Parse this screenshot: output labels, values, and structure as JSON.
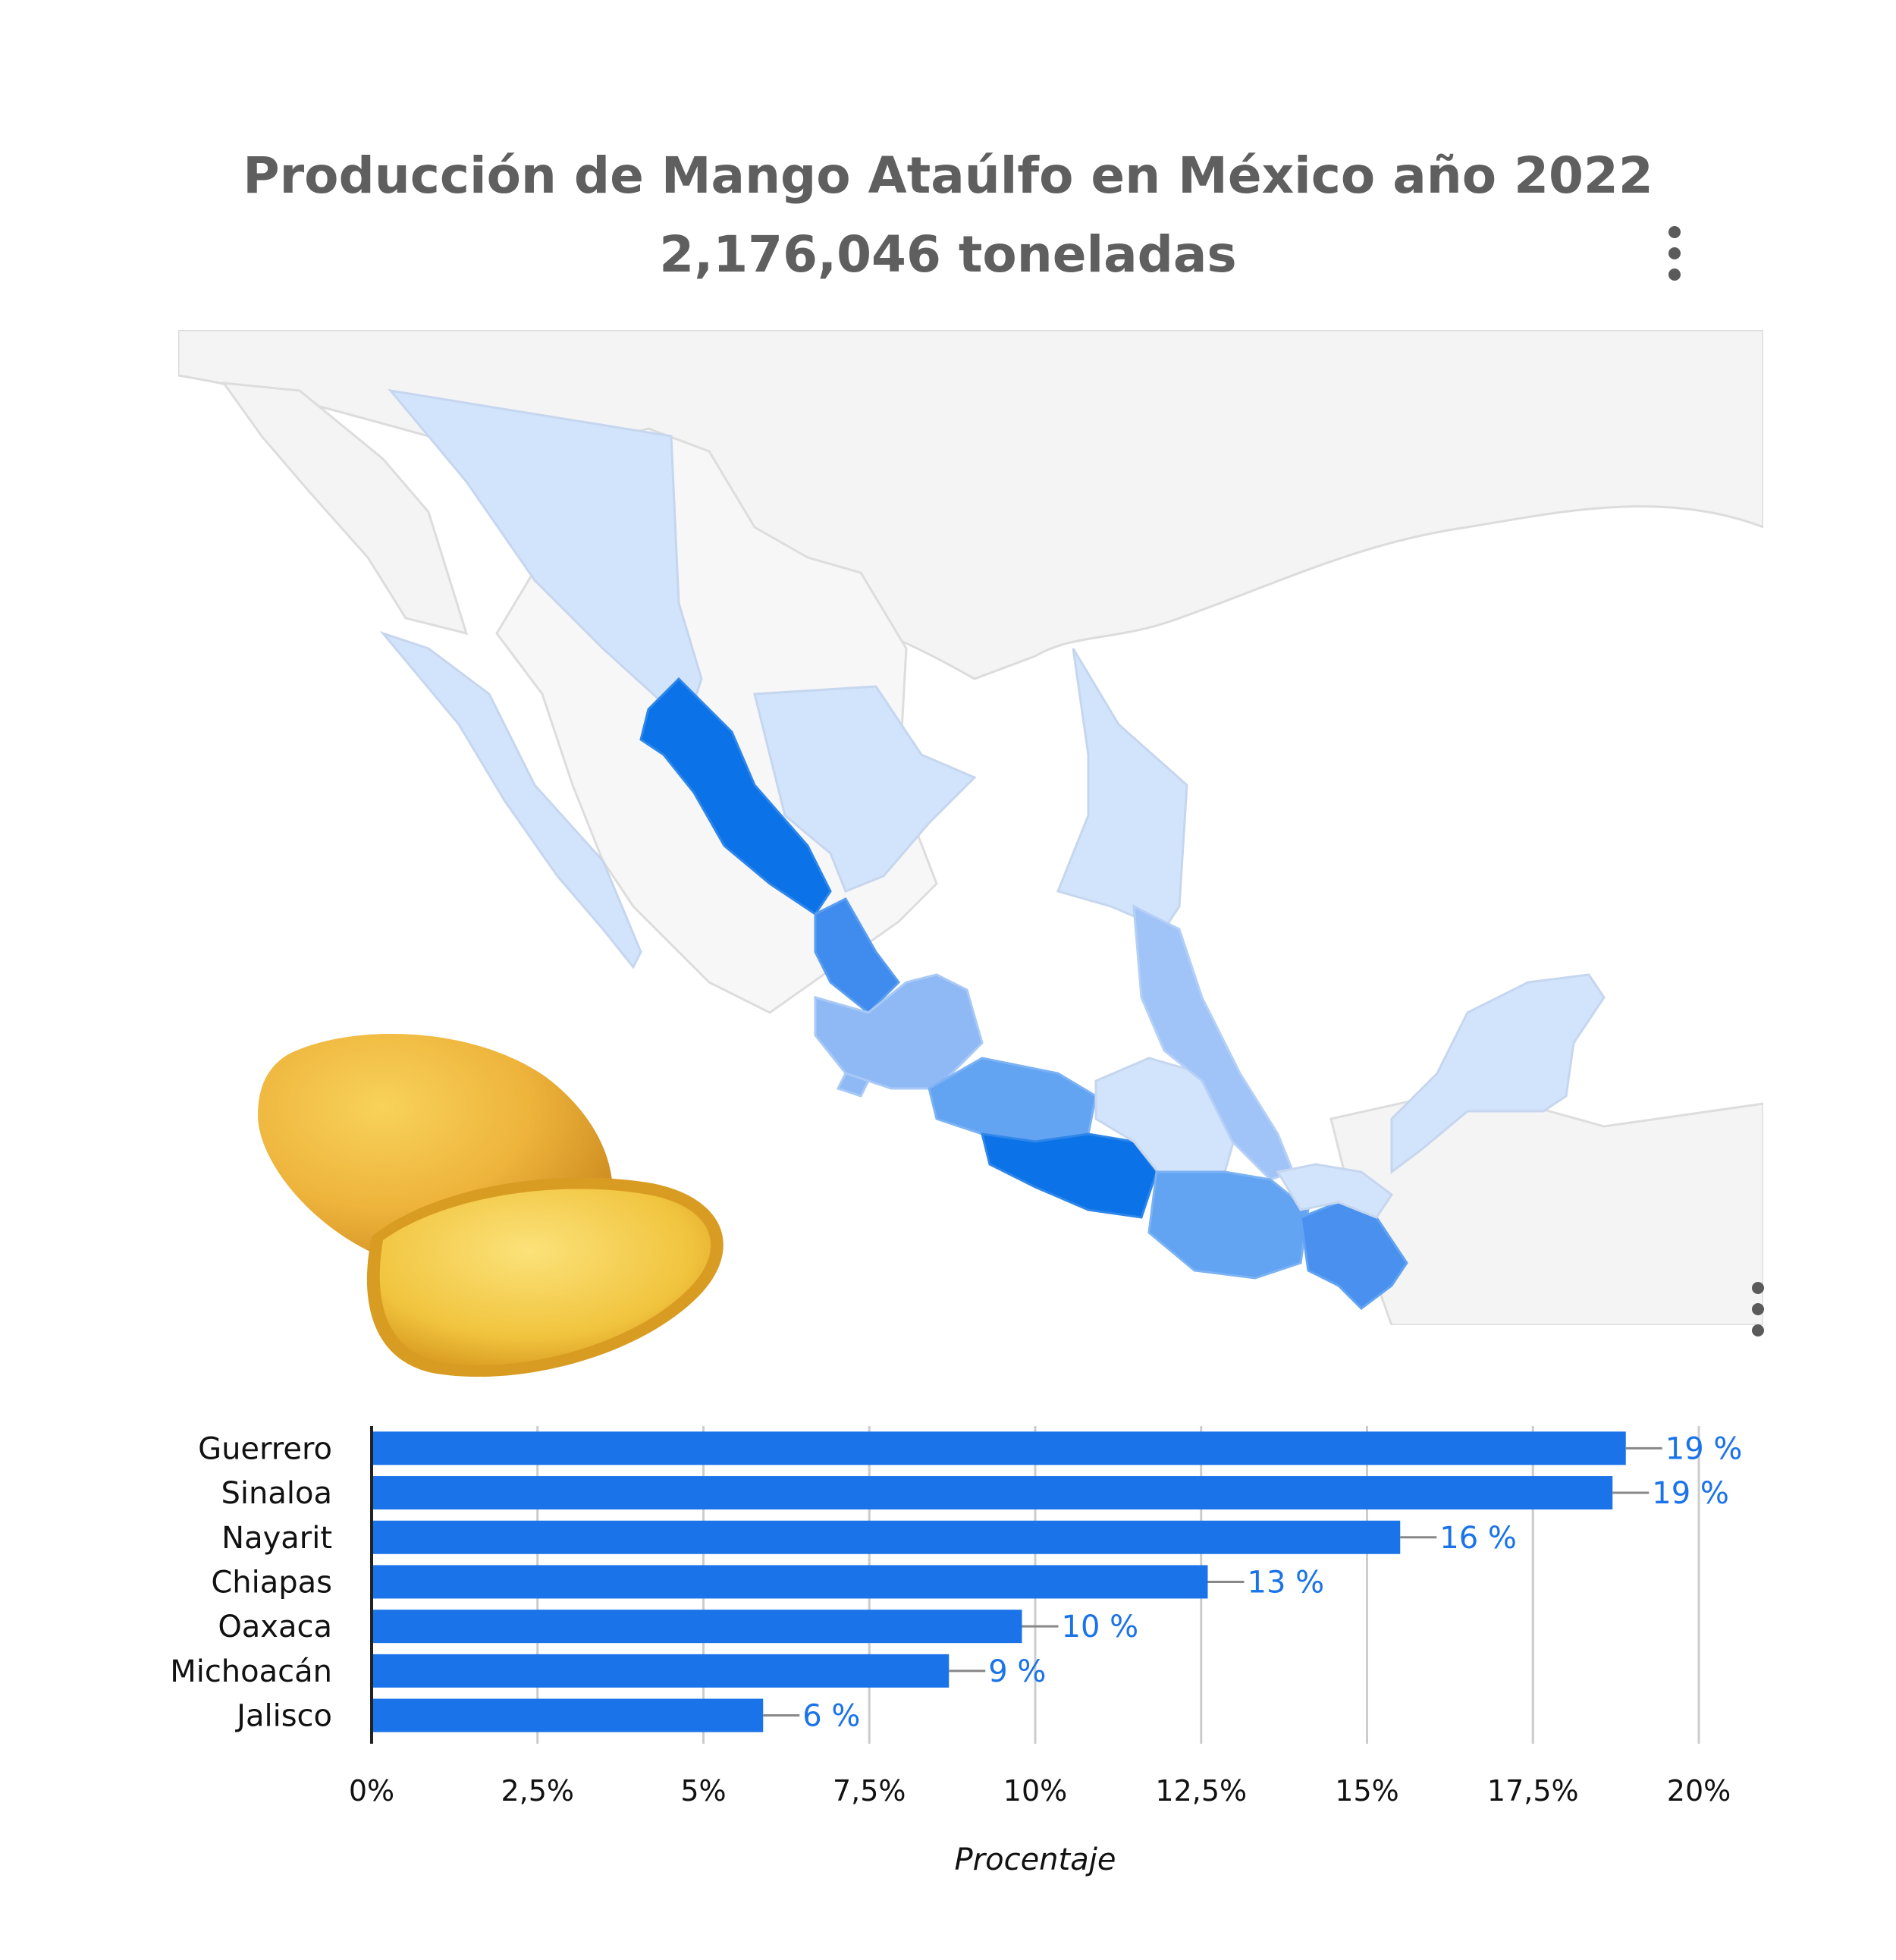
{
  "title": {
    "line1": "Producción de Mango Ataúlfo en México año 2022",
    "line2": "2,176,046 toneladas"
  },
  "icons": {
    "menu": "vertical-dots-icon",
    "map_menu": "vertical-dots-icon",
    "photo": "mango-image"
  },
  "colors": {
    "bar": "#1a73e8",
    "data_label": "#1a73e8",
    "map_land": "#f5f5f5",
    "map_low": "#d2e3fc",
    "map_mid": "#a1c4f8",
    "map_high": "#62a3f2",
    "map_top": "#0b72e7"
  },
  "chart_data": [
    {
      "type": "map",
      "region": "Mexico",
      "scale": "blue sequential (darker = higher share)",
      "highlighted_states_shade": {
        "Guerrero": "darkest",
        "Sinaloa": "darkest",
        "Nayarit": "dark",
        "Chiapas": "medium-dark",
        "Oaxaca": "medium-dark",
        "Michoacán": "medium",
        "Jalisco": "medium",
        "Colima": "medium",
        "Veracruz": "medium",
        "Baja California Sur": "light",
        "Sonora": "light",
        "Durango": "light",
        "Tamaulipas": "light",
        "Campeche": "light",
        "Yucatán": "light",
        "Tabasco": "light",
        "Puebla": "light",
        "Morelos": "light",
        "Estado de México": "light"
      }
    },
    {
      "type": "bar",
      "orientation": "horizontal",
      "categories": [
        "Guerrero",
        "Sinaloa",
        "Nayarit",
        "Chiapas",
        "Oaxaca",
        "Michoacán",
        "Jalisco"
      ],
      "values": [
        18.9,
        18.7,
        15.5,
        12.6,
        9.8,
        8.7,
        5.9
      ],
      "data_labels": [
        "19 %",
        "19 %",
        "16 %",
        "13 %",
        "10 %",
        "9 %",
        "6 %"
      ],
      "xlabel": "Procentaje",
      "xlim": [
        0,
        20
      ],
      "x_ticks": [
        0,
        2.5,
        5,
        7.5,
        10,
        12.5,
        15,
        17.5,
        20
      ],
      "x_tick_labels": [
        "0%",
        "2,5%",
        "5%",
        "7,5%",
        "10%",
        "12,5%",
        "15%",
        "17,5%",
        "20%"
      ],
      "grid": "vertical",
      "legend": "none"
    }
  ]
}
